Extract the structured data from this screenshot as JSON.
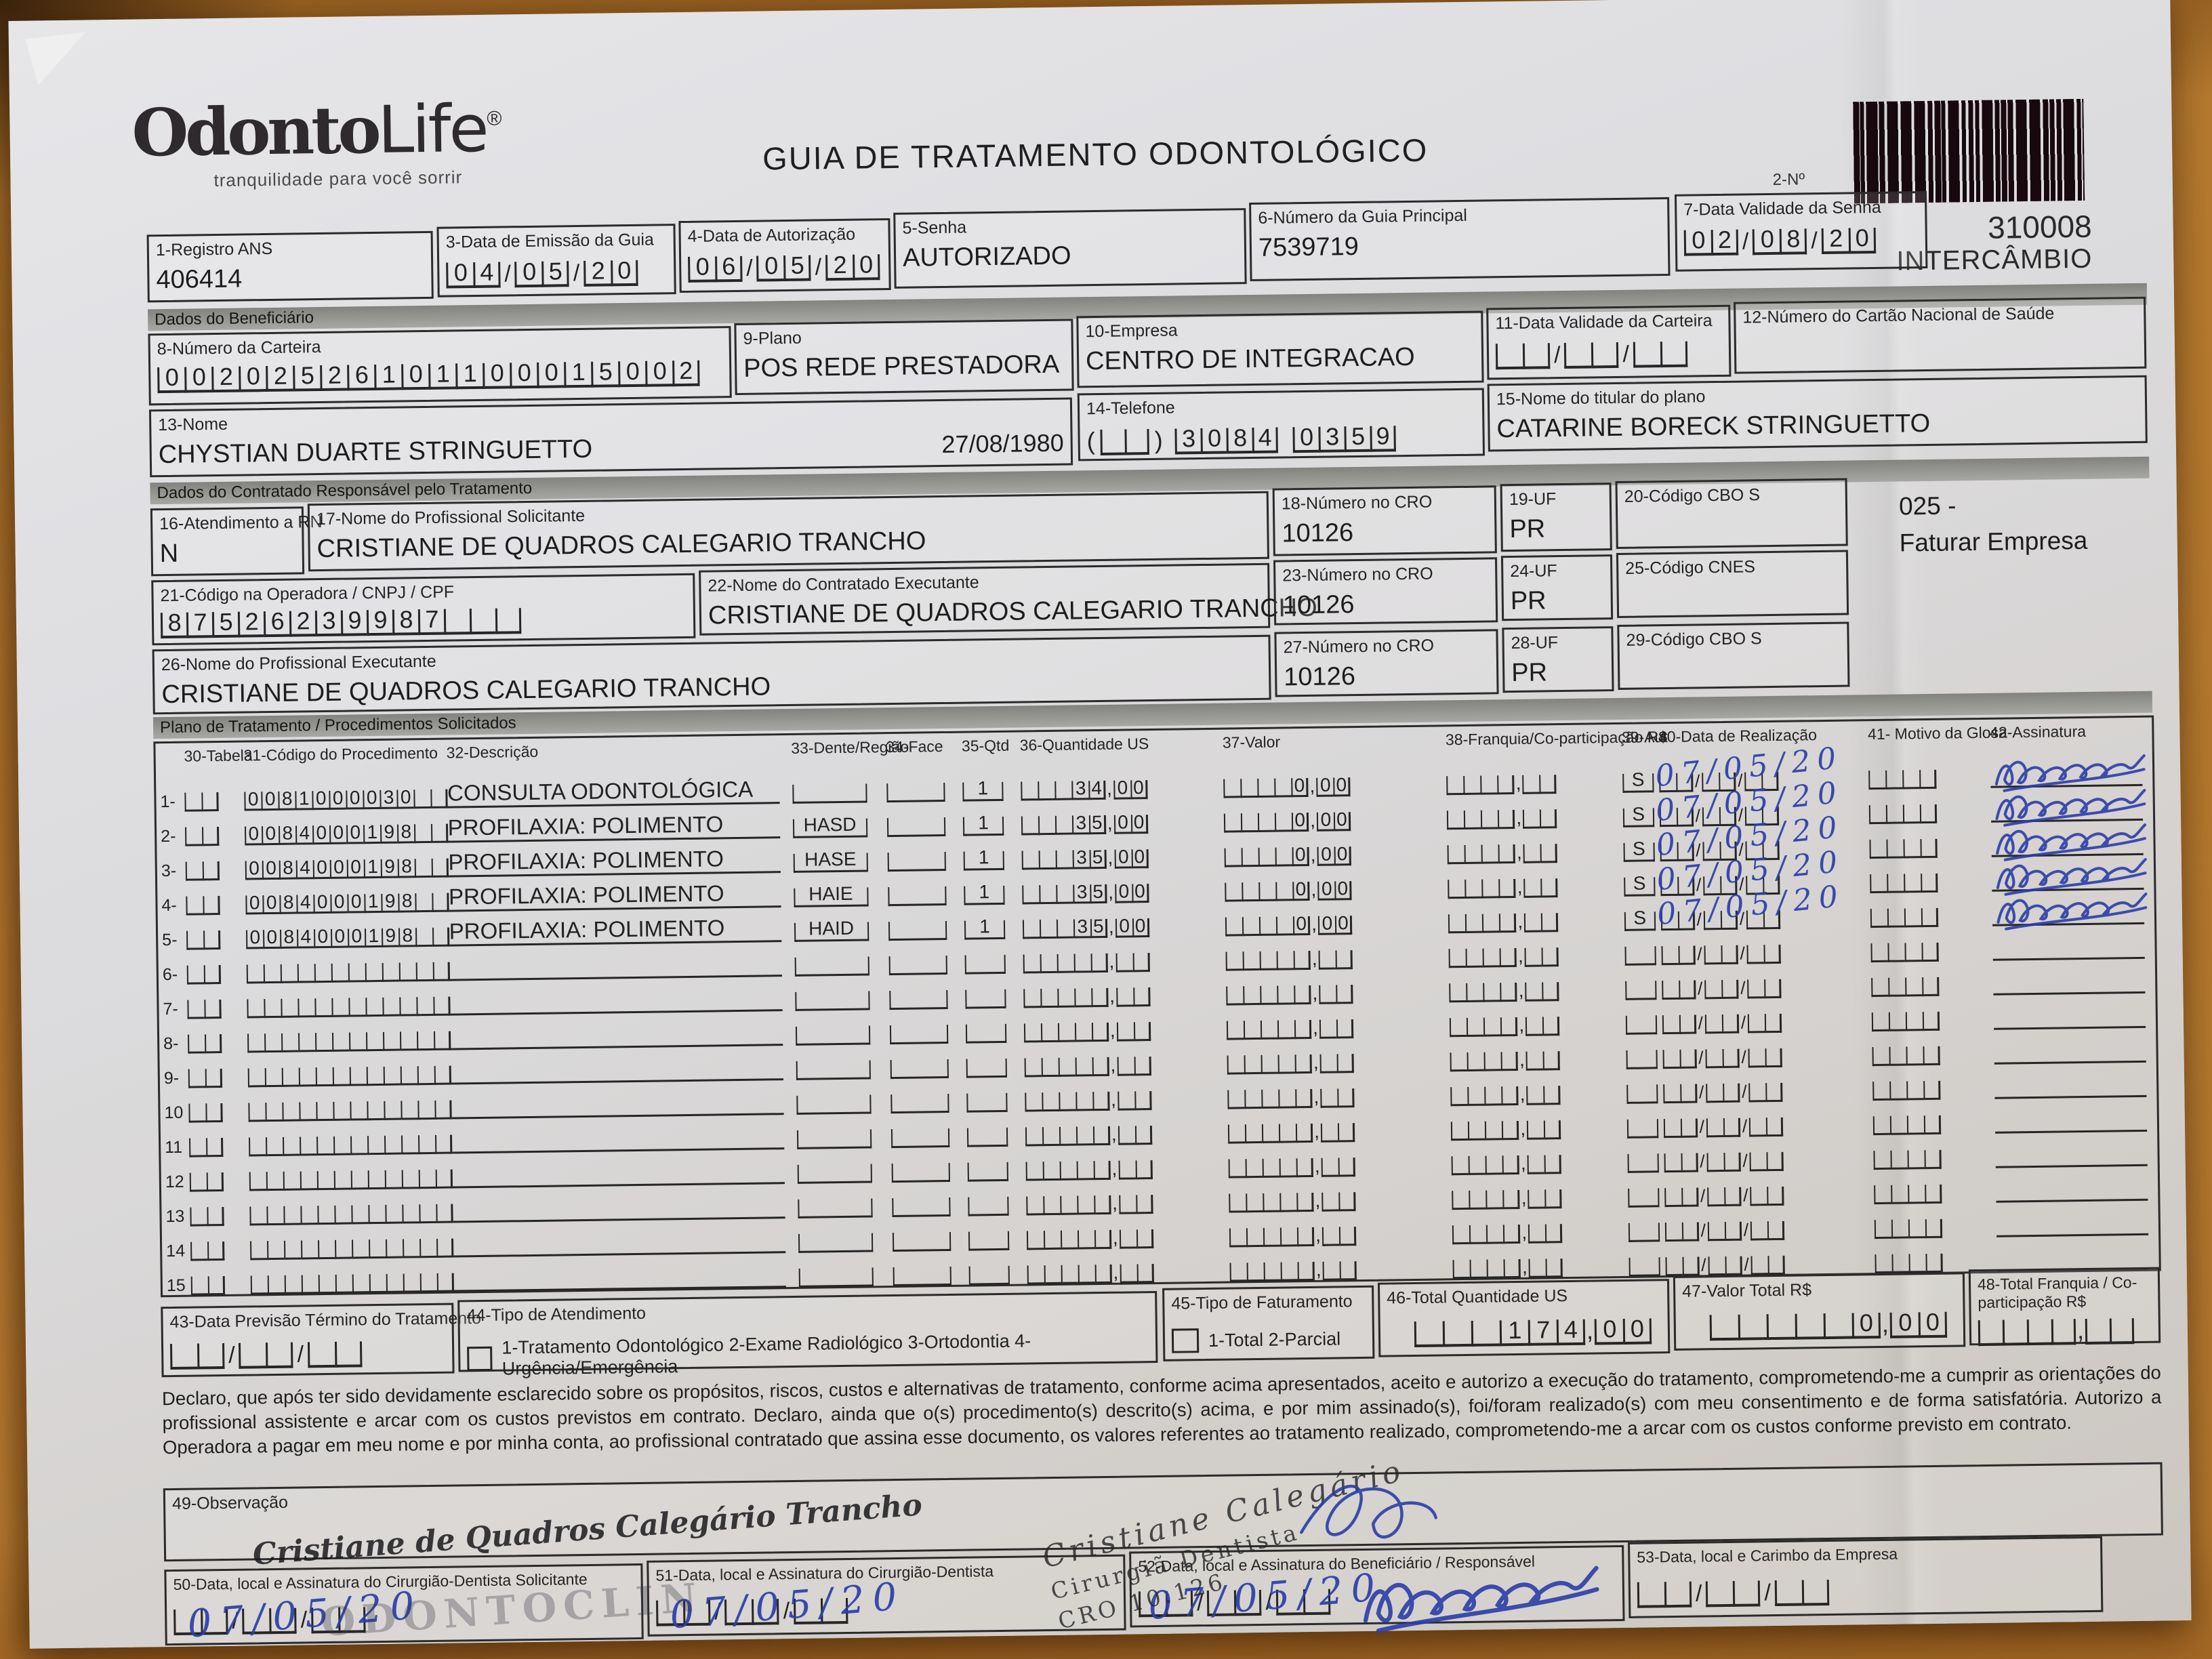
{
  "colors": {
    "ink_blue": "#2c3ea8",
    "stamp_black": "#222222",
    "paper": "#dcdcdf",
    "wood": "#b97c30",
    "section_bar": "#9a9a97"
  },
  "brand": {
    "logo_odonto": "Odonto",
    "logo_life": "Life",
    "registered": "®",
    "tagline": "tranquilidade para você sorrir"
  },
  "header": {
    "title": "GUIA DE TRATAMENTO ODONTOLÓGICO",
    "barcode_label": "2-Nº",
    "guide_number": "310008",
    "guide_type": "INTERCÂMBIO"
  },
  "sections": {
    "beneficiario": "Dados do Beneficiário",
    "contratado": "Dados do Contratado Responsável pelo Tratamento",
    "plano": "Plano de Tratamento / Procedimentos Solicitados"
  },
  "fields": {
    "registro_ans": {
      "label": "1-Registro ANS",
      "value": "406414"
    },
    "emissao": {
      "label": "3-Data de Emissão da Guia",
      "value": "04/05/20"
    },
    "autorizacao": {
      "label": "4-Data de Autorização",
      "value": "06/05/20"
    },
    "senha": {
      "label": "5-Senha",
      "value": "AUTORIZADO"
    },
    "guia_principal": {
      "label": "6-Número da Guia Principal",
      "value": "7539719"
    },
    "validade_senha": {
      "label": "7-Data Validade da Senha",
      "value": "02/08/20"
    },
    "carteira": {
      "label": "8-Número da Carteira",
      "value": "00202526101100015002"
    },
    "plano": {
      "label": "9-Plano",
      "value": "POS REDE PRESTADORA"
    },
    "empresa": {
      "label": "10-Empresa",
      "value": "CENTRO DE INTEGRACAO"
    },
    "validade_carteira": {
      "label": "11-Data Validade da Carteira",
      "value": ""
    },
    "cartao_nacional": {
      "label": "12-Número do Cartão Nacional de Saúde",
      "value": ""
    },
    "nome": {
      "label": "13-Nome",
      "value": "CHYSTIAN DUARTE STRINGUETTO",
      "nascimento": "27/08/1980"
    },
    "telefone": {
      "label": "14-Telefone",
      "ddd": "",
      "parte1": "3084",
      "parte2": "0359"
    },
    "titular": {
      "label": "15-Nome do titular do plano",
      "value": "CATARINE BORECK STRINGUETTO"
    },
    "rn": {
      "label": "16-Atendimento a RN",
      "value": "N"
    },
    "prof_solicitante": {
      "label": "17-Nome do Profissional Solicitante",
      "value": "CRISTIANE DE QUADROS CALEGARIO TRANCHO"
    },
    "cro18": {
      "label": "18-Número no CRO",
      "value": "10126"
    },
    "uf19": {
      "label": "19-UF",
      "value": "PR"
    },
    "cbo20": {
      "label": "20-Código CBO S",
      "value": ""
    },
    "faturar": {
      "line1": "025 -",
      "line2": "Faturar Empresa"
    },
    "codigo_operadora": {
      "label": "21-Código na Operadora / CNPJ / CPF",
      "value": "87526239987"
    },
    "contratado_exec": {
      "label": "22-Nome do Contratado Executante",
      "value": "CRISTIANE DE QUADROS CALEGARIO TRANCHO"
    },
    "cro23": {
      "label": "23-Número no CRO",
      "value": "10126"
    },
    "uf24": {
      "label": "24-UF",
      "value": "PR"
    },
    "cnes25": {
      "label": "25-Código CNES",
      "value": ""
    },
    "prof_executante": {
      "label": "26-Nome do Profissional Executante",
      "value": "CRISTIANE DE QUADROS CALEGARIO TRANCHO"
    },
    "cro27": {
      "label": "27-Número no CRO",
      "value": "10126"
    },
    "uf28": {
      "label": "28-UF",
      "value": "PR"
    },
    "cbo29": {
      "label": "29-Código CBO S",
      "value": ""
    }
  },
  "table": {
    "headers": [
      "30-Tabela",
      "31-Código do Procedimento",
      "32-Descrição",
      "33-Dente/Região",
      "34-Face",
      "35-Qtd",
      "36-Quantidade US",
      "37-Valor",
      "38-Franquia/Co-participação R$",
      "39-Aut",
      "40-Data de Realização",
      "41- Motivo da Glosa",
      "42-Assinatura"
    ],
    "rows": [
      {
        "n": "1-",
        "tabela": "",
        "codigo": "0081000030",
        "descricao": "CONSULTA ODONTOLÓGICA",
        "dente": "",
        "face": "",
        "qtd": "1",
        "us": "34,00",
        "valor": "0,00",
        "franquia": "",
        "aut": "S",
        "data": "07/05/20",
        "motivo": "",
        "assinado": true
      },
      {
        "n": "2-",
        "tabela": "",
        "codigo": "0084000198",
        "descricao": "PROFILAXIA: POLIMENTO",
        "dente": "HASD",
        "face": "",
        "qtd": "1",
        "us": "35,00",
        "valor": "0,00",
        "franquia": "",
        "aut": "S",
        "data": "07/05/20",
        "motivo": "",
        "assinado": true
      },
      {
        "n": "3-",
        "tabela": "",
        "codigo": "0084000198",
        "descricao": "PROFILAXIA: POLIMENTO",
        "dente": "HASE",
        "face": "",
        "qtd": "1",
        "us": "35,00",
        "valor": "0,00",
        "franquia": "",
        "aut": "S",
        "data": "07/05/20",
        "motivo": "",
        "assinado": true
      },
      {
        "n": "4-",
        "tabela": "",
        "codigo": "0084000198",
        "descricao": "PROFILAXIA: POLIMENTO",
        "dente": "HAIE",
        "face": "",
        "qtd": "1",
        "us": "35,00",
        "valor": "0,00",
        "franquia": "",
        "aut": "S",
        "data": "07/05/20",
        "motivo": "",
        "assinado": true
      },
      {
        "n": "5-",
        "tabela": "",
        "codigo": "0084000198",
        "descricao": "PROFILAXIA: POLIMENTO",
        "dente": "HAID",
        "face": "",
        "qtd": "1",
        "us": "35,00",
        "valor": "0,00",
        "franquia": "",
        "aut": "S",
        "data": "07/05/20",
        "motivo": "",
        "assinado": true
      },
      {
        "n": "6-",
        "tabela": "",
        "codigo": "",
        "descricao": "",
        "dente": "",
        "face": "",
        "qtd": "",
        "us": "",
        "valor": "",
        "franquia": "",
        "aut": "",
        "data": "",
        "motivo": "",
        "assinado": false
      },
      {
        "n": "7-",
        "tabela": "",
        "codigo": "",
        "descricao": "",
        "dente": "",
        "face": "",
        "qtd": "",
        "us": "",
        "valor": "",
        "franquia": "",
        "aut": "",
        "data": "",
        "motivo": "",
        "assinado": false
      },
      {
        "n": "8-",
        "tabela": "",
        "codigo": "",
        "descricao": "",
        "dente": "",
        "face": "",
        "qtd": "",
        "us": "",
        "valor": "",
        "franquia": "",
        "aut": "",
        "data": "",
        "motivo": "",
        "assinado": false
      },
      {
        "n": "9-",
        "tabela": "",
        "codigo": "",
        "descricao": "",
        "dente": "",
        "face": "",
        "qtd": "",
        "us": "",
        "valor": "",
        "franquia": "",
        "aut": "",
        "data": "",
        "motivo": "",
        "assinado": false
      },
      {
        "n": "10",
        "tabela": "",
        "codigo": "",
        "descricao": "",
        "dente": "",
        "face": "",
        "qtd": "",
        "us": "",
        "valor": "",
        "franquia": "",
        "aut": "",
        "data": "",
        "motivo": "",
        "assinado": false
      },
      {
        "n": "11",
        "tabela": "",
        "codigo": "",
        "descricao": "",
        "dente": "",
        "face": "",
        "qtd": "",
        "us": "",
        "valor": "",
        "franquia": "",
        "aut": "",
        "data": "",
        "motivo": "",
        "assinado": false
      },
      {
        "n": "12",
        "tabela": "",
        "codigo": "",
        "descricao": "",
        "dente": "",
        "face": "",
        "qtd": "",
        "us": "",
        "valor": "",
        "franquia": "",
        "aut": "",
        "data": "",
        "motivo": "",
        "assinado": false
      },
      {
        "n": "13",
        "tabela": "",
        "codigo": "",
        "descricao": "",
        "dente": "",
        "face": "",
        "qtd": "",
        "us": "",
        "valor": "",
        "franquia": "",
        "aut": "",
        "data": "",
        "motivo": "",
        "assinado": false
      },
      {
        "n": "14",
        "tabela": "",
        "codigo": "",
        "descricao": "",
        "dente": "",
        "face": "",
        "qtd": "",
        "us": "",
        "valor": "",
        "franquia": "",
        "aut": "",
        "data": "",
        "motivo": "",
        "assinado": false
      },
      {
        "n": "15",
        "tabela": "",
        "codigo": "",
        "descricao": "",
        "dente": "",
        "face": "",
        "qtd": "",
        "us": "",
        "valor": "",
        "franquia": "",
        "aut": "",
        "data": "",
        "motivo": "",
        "assinado": false
      }
    ]
  },
  "totals": {
    "b43": {
      "label": "43-Data Previsão Término do Tratamento",
      "value": ""
    },
    "b44": {
      "label": "44-Tipo de Atendimento",
      "options": "1-Tratamento Odontológico  2-Exame Radiológico  3-Ortodontia  4-Urgência/Emergência",
      "value": ""
    },
    "b45": {
      "label": "45-Tipo de Faturamento",
      "options": "1-Total  2-Parcial",
      "value": ""
    },
    "b46": {
      "label": "46-Total Quantidade US",
      "value": "174,00"
    },
    "b47": {
      "label": "47-Valor Total R$",
      "value": "0,00"
    },
    "b48": {
      "label": "48-Total Franquia / Co-participação R$",
      "value": ""
    }
  },
  "declaration": "Declaro, que após ter sido devidamente esclarecido sobre os propósitos, riscos, custos e alternativas de tratamento, conforme acima apresentados, aceito e autorizo a execução do tratamento, comprometendo-me a cumprir as orientações do profissional assistente e arcar com os custos previstos em contrato. Declaro, ainda que o(s) procedimento(s) descrito(s) acima, e por mim assinado(s), foi/foram realizado(s) com meu consentimento e de forma satisfatória. Autorizo a Operadora a pagar em meu nome e por minha conta, ao profissional contratado que assina esse documento, os valores referentes ao tratamento realizado, comprometendo-me a arcar com os custos conforme previsto em contrato.",
  "observacao": {
    "label": "49-Observação",
    "value": ""
  },
  "signatures": {
    "b50": {
      "label": "50-Data, local e Assinatura do Cirurgião-Dentista Solicitante",
      "date_ink": "07/05/20"
    },
    "b51": {
      "label": "51-Data, local e Assinatura do Cirurgião-Dentista",
      "date_ink": "07/05/20"
    },
    "b52": {
      "label": "52-Data, local e Assinatura do Beneficiário / Responsável",
      "date_ink": "07/05/20"
    },
    "b53": {
      "label": "53-Data, local e Carimbo da Empresa",
      "date_ink": ""
    },
    "stamp_solicitante_name": "Cristiane de Quadros Calegário Trancho",
    "stamp_clinic": "ODONTOCLIN",
    "stamp_dentist_line1": "Cristiane Calegário",
    "stamp_dentist_line2": "Cirurgiã Dentista",
    "stamp_dentist_line3": "CRO 10.126"
  }
}
